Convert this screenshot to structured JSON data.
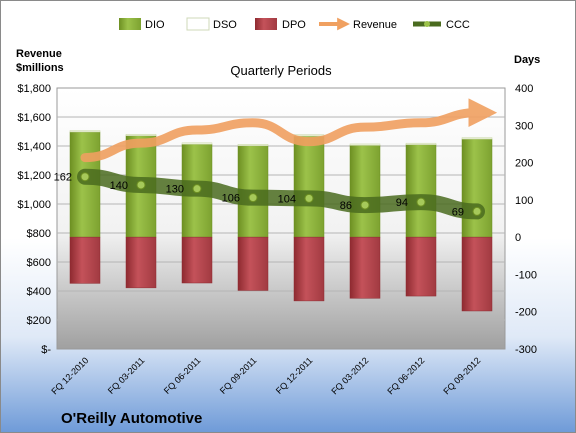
{
  "chart_data": {
    "type": "bar",
    "title": "Quarterly Periods",
    "company": "O'Reilly Automotive",
    "left_axis_label_line1": "Revenue",
    "left_axis_label_line2": "$millions",
    "right_axis_label": "Days",
    "categories": [
      "FQ 12-2010",
      "FQ 03-2011",
      "FQ 06-2011",
      "FQ 09-2011",
      "FQ 12-2011",
      "FQ 03-2012",
      "FQ 06-2012",
      "FQ 09-2012"
    ],
    "left_ticks": [
      "$-",
      "$200",
      "$400",
      "$600",
      "$800",
      "$1,000",
      "$1,200",
      "$1,400",
      "$1,600",
      "$1,800"
    ],
    "right_ticks": [
      "-300",
      "-200",
      "-100",
      "0",
      "100",
      "200",
      "300",
      "400"
    ],
    "left_ylim": [
      0,
      1800
    ],
    "right_ylim": [
      -300,
      400
    ],
    "legend_position": "top",
    "legend": [
      "DIO",
      "DSO",
      "DPO",
      "Revenue",
      "CCC"
    ],
    "series": [
      {
        "name": "DIO",
        "axis": "right",
        "values": [
          282,
          272,
          249,
          245,
          271,
          246,
          248,
          263
        ]
      },
      {
        "name": "DSO",
        "axis": "right",
        "values": [
          4,
          4,
          4,
          4,
          4,
          4,
          4,
          4
        ]
      },
      {
        "name": "DPO",
        "axis": "right",
        "values": [
          -124,
          -136,
          -123,
          -143,
          -171,
          -164,
          -158,
          -198
        ]
      },
      {
        "name": "Revenue",
        "axis": "left",
        "values": [
          1320,
          1420,
          1510,
          1560,
          1430,
          1530,
          1560,
          1630
        ]
      },
      {
        "name": "CCC",
        "axis": "right",
        "values": [
          162,
          140,
          130,
          106,
          104,
          86,
          94,
          69
        ]
      }
    ],
    "data_labels": [
      "162",
      "140",
      "130",
      "106",
      "104",
      "86",
      "94",
      "69"
    ],
    "colors": {
      "DIO": "#8db33a",
      "DSO": "#ffffff",
      "DPO": "#b8434a",
      "Revenue": "#f0a060",
      "CCC": "#5a7a2a",
      "plot_bg": "#ffffff",
      "plot_bottom": "#a6a6a6"
    }
  }
}
